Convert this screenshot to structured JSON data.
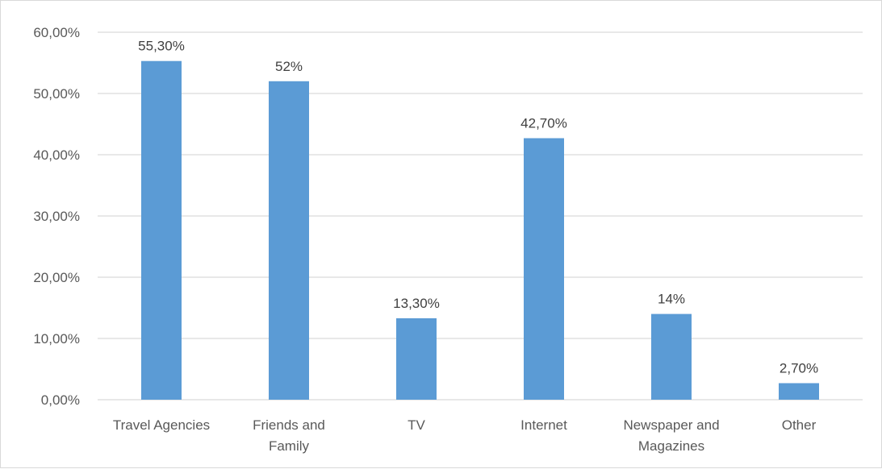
{
  "chart_data": {
    "type": "bar",
    "categories": [
      [
        "Travel Agencies"
      ],
      [
        "Friends and",
        "Family"
      ],
      [
        "TV"
      ],
      [
        "Internet"
      ],
      [
        "Newspaper and",
        "Magazines"
      ],
      [
        "Other"
      ]
    ],
    "values": [
      55.3,
      52,
      13.3,
      42.7,
      14,
      2.7
    ],
    "data_labels": [
      "55,30%",
      "52%",
      "13,30%",
      "42,70%",
      "14%",
      "2,70%"
    ],
    "ylim": [
      0,
      60
    ],
    "y_ticks": [
      0,
      10,
      20,
      30,
      40,
      50,
      60
    ],
    "y_tick_labels": [
      "0,00%",
      "10,00%",
      "20,00%",
      "30,00%",
      "40,00%",
      "50,00%",
      "60,00%"
    ],
    "title": "",
    "xlabel": "",
    "ylabel": "",
    "grid": true,
    "legend": "none",
    "bar_color": "#5b9bd5",
    "grid_color": "#d9d9d9"
  }
}
